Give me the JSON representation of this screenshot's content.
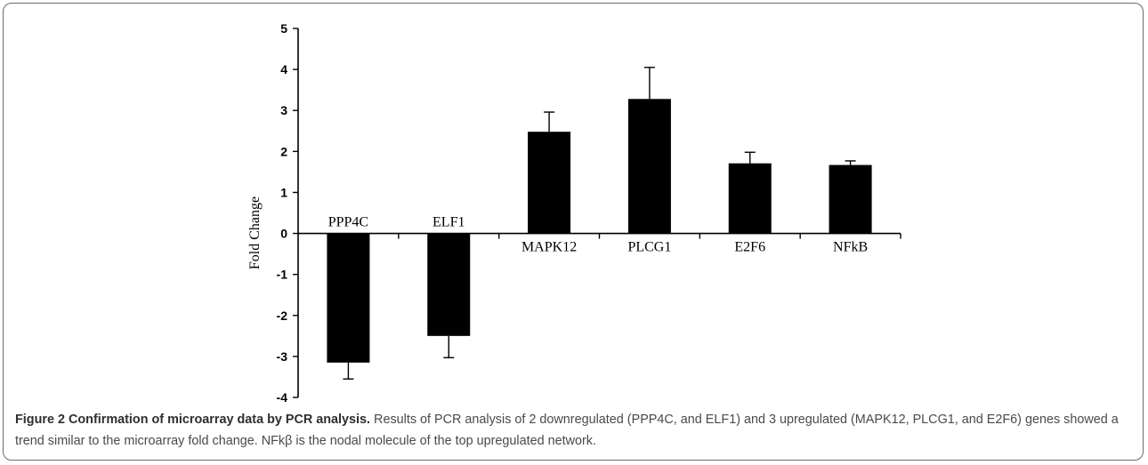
{
  "chart_data": {
    "type": "bar",
    "categories": [
      "PPP4C",
      "ELF1",
      "MAPK12",
      "PLCG1",
      "E2F6",
      "NFkB"
    ],
    "values": [
      -3.15,
      -2.5,
      2.48,
      3.28,
      1.71,
      1.67
    ],
    "errors": [
      0.4,
      0.53,
      0.48,
      0.77,
      0.27,
      0.1
    ],
    "ylabel": "Fold Change",
    "ylim": [
      -4,
      5
    ],
    "yticks": [
      "5",
      "4",
      "3",
      "2",
      "1",
      "0",
      "-1",
      "-2",
      "-3",
      "-4"
    ],
    "bar_color": "#000000",
    "grid": false,
    "legend": "none"
  },
  "caption": {
    "bold": "Figure 2 Confirmation of microarray data by PCR analysis.",
    "text": " Results of PCR analysis of 2 downregulated (PPP4C, and ELF1) and 3 upregulated (MAPK12, PLCG1, and E2F6) genes showed a trend similar to the microarray fold change. NFkβ is the nodal molecule of the top upregulated network."
  }
}
